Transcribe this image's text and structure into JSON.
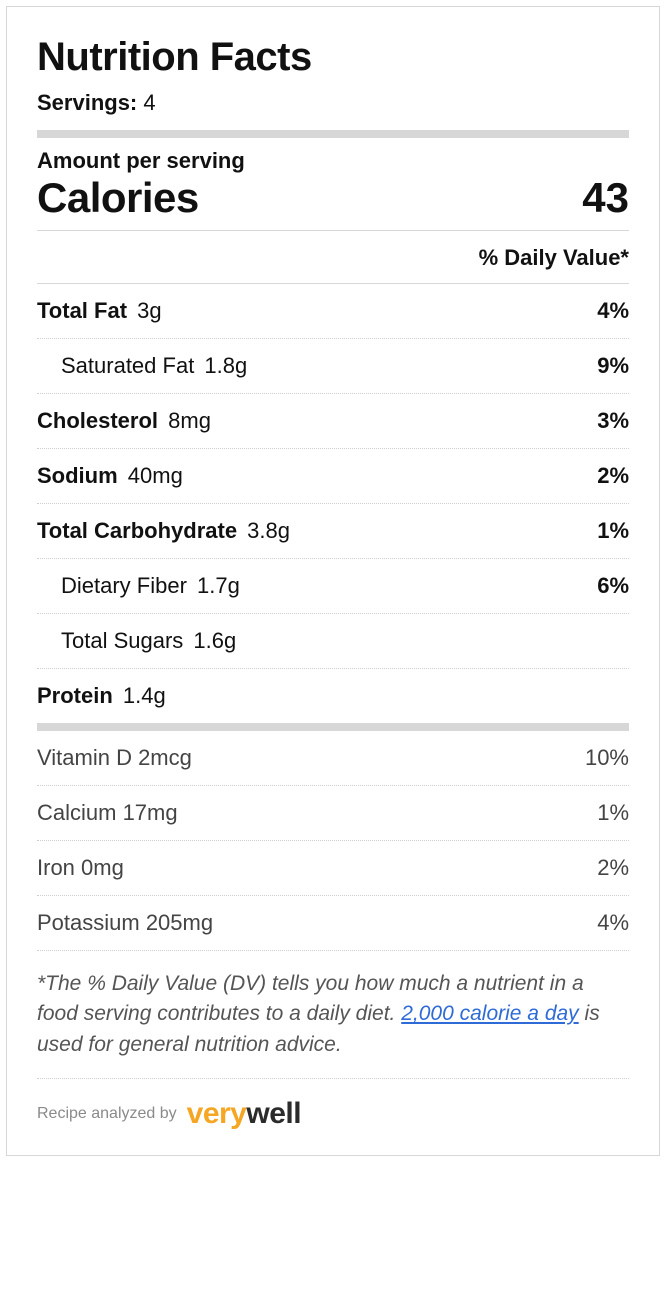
{
  "title": "Nutrition Facts",
  "servings": {
    "label": "Servings:",
    "value": "4"
  },
  "amount_per": "Amount per serving",
  "calories": {
    "label": "Calories",
    "value": "43"
  },
  "dv_header": "% Daily Value*",
  "nutrients": [
    {
      "name": "Total Fat",
      "amount": "3g",
      "pct": "4%",
      "bold": true,
      "indent": false
    },
    {
      "name": "Saturated Fat",
      "amount": "1.8g",
      "pct": "9%",
      "bold": false,
      "indent": true
    },
    {
      "name": "Cholesterol",
      "amount": "8mg",
      "pct": "3%",
      "bold": true,
      "indent": false
    },
    {
      "name": "Sodium",
      "amount": "40mg",
      "pct": "2%",
      "bold": true,
      "indent": false
    },
    {
      "name": "Total Carbohydrate",
      "amount": "3.8g",
      "pct": "1%",
      "bold": true,
      "indent": false
    },
    {
      "name": "Dietary Fiber",
      "amount": "1.7g",
      "pct": "6%",
      "bold": false,
      "indent": true
    },
    {
      "name": "Total Sugars",
      "amount": "1.6g",
      "pct": "",
      "bold": false,
      "indent": true
    },
    {
      "name": "Protein",
      "amount": "1.4g",
      "pct": "",
      "bold": true,
      "indent": false
    }
  ],
  "vitamins": [
    {
      "name": "Vitamin D",
      "amount": "2mcg",
      "pct": "10%"
    },
    {
      "name": "Calcium",
      "amount": "17mg",
      "pct": "1%"
    },
    {
      "name": "Iron",
      "amount": "0mg",
      "pct": "2%"
    },
    {
      "name": "Potassium",
      "amount": "205mg",
      "pct": "4%"
    }
  ],
  "footnote": {
    "pre": "*The % Daily Value (DV) tells you how much a nutrient in a food serving contributes to a daily diet. ",
    "link": "2,000 calorie a day",
    "post": " is used for general nutrition advice."
  },
  "analyzed": {
    "by": "Recipe analyzed by",
    "brand_very": "very",
    "brand_well": "well"
  },
  "style": {
    "panel_border": "#d7d7d7",
    "rule_color": "#d7d7d7",
    "dotted_color": "#cfcfcf",
    "text_color": "#111111",
    "muted_color": "#555555",
    "link_color": "#2e6bd6",
    "brand_orange": "#f5a623",
    "brand_dark": "#2b2b2b",
    "title_fontsize": 40,
    "body_fontsize": 22,
    "cal_fontsize": 42
  }
}
